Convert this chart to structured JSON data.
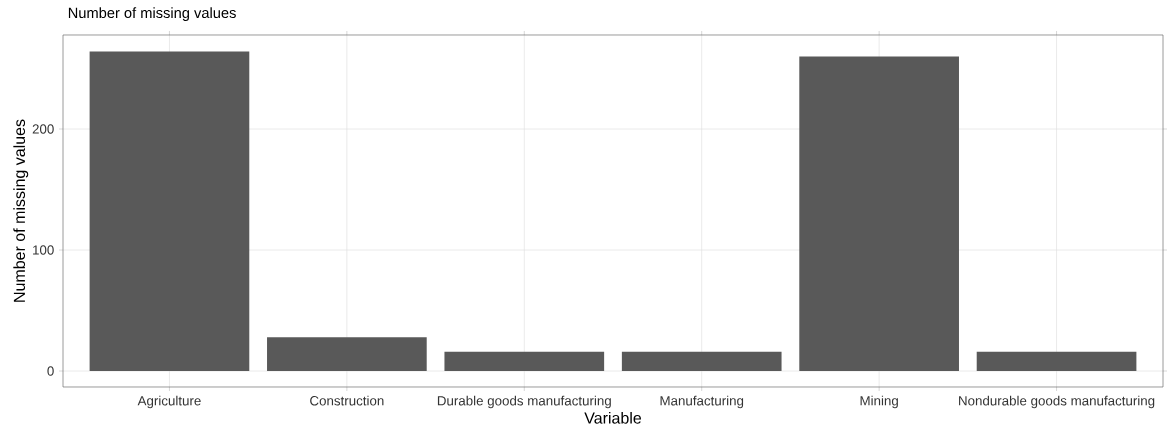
{
  "chart_data": {
    "type": "bar",
    "title": "Number of missing values",
    "xlabel": "Variable",
    "ylabel": "Number of missing values",
    "categories": [
      "Agriculture",
      "Construction",
      "Durable goods manufacturing",
      "Manufacturing",
      "Mining",
      "Nondurable goods manufacturing"
    ],
    "values": [
      264,
      28,
      16,
      16,
      260,
      16
    ],
    "color": "#595959",
    "ylim": [
      -13.2,
      277.7
    ],
    "yticks": [
      0,
      100,
      200
    ],
    "grid": true
  }
}
